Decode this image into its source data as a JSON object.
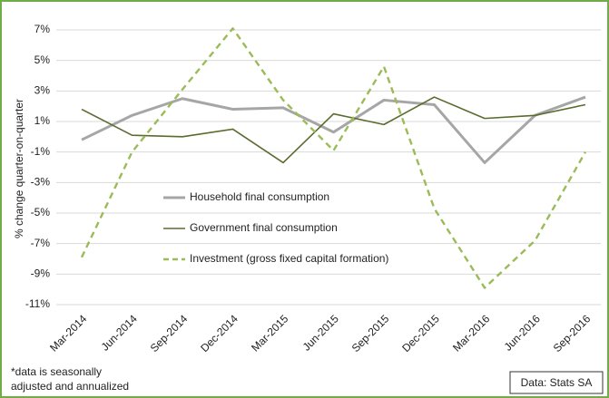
{
  "chart_data": {
    "type": "line",
    "y_label": "% change quarter-on-quarter",
    "categories": [
      "Mar-2014",
      "Jun-2014",
      "Sep-2014",
      "Dec-2014",
      "Mar-2015",
      "Jun-2015",
      "Sep-2015",
      "Dec-2015",
      "Mar-2016",
      "Jun-2016",
      "Sep-2016"
    ],
    "series": [
      {
        "name": "Household final consumption",
        "color": "#a6a6a6",
        "width": 3,
        "dashed": false,
        "values": [
          -0.2,
          1.4,
          2.5,
          1.8,
          1.9,
          0.3,
          2.4,
          2.1,
          -1.7,
          1.4,
          2.6
        ]
      },
      {
        "name": "Government final consumption",
        "color": "#5a6b2e",
        "width": 1.6,
        "dashed": false,
        "values": [
          1.8,
          0.1,
          0.0,
          0.5,
          -1.7,
          1.5,
          0.8,
          2.6,
          1.2,
          1.4,
          2.1
        ]
      },
      {
        "name": "Investment (gross fixed capital formation)",
        "color": "#9bbb59",
        "width": 2.4,
        "dashed": true,
        "values": [
          -7.9,
          -1.0,
          3.1,
          7.1,
          2.4,
          -0.9,
          4.6,
          -4.7,
          -9.9,
          -6.8,
          -1.0
        ]
      }
    ],
    "ylim": [
      -11,
      7
    ],
    "yticks": [
      {
        "value": 7,
        "label": "7%"
      },
      {
        "value": 5,
        "label": "5%"
      },
      {
        "value": 3,
        "label": "3%"
      },
      {
        "value": 1,
        "label": "1%"
      },
      {
        "value": -1,
        "label": "-1%"
      },
      {
        "value": -3,
        "label": "-3%"
      },
      {
        "value": -5,
        "label": "-5%"
      },
      {
        "value": -7,
        "label": "-7%"
      },
      {
        "value": -9,
        "label": "-9%"
      },
      {
        "value": -11,
        "label": "-11%"
      }
    ],
    "grid": true,
    "note": [
      "*data is seasonally",
      "adjusted and annualized"
    ],
    "source": "Data: Stats SA"
  }
}
